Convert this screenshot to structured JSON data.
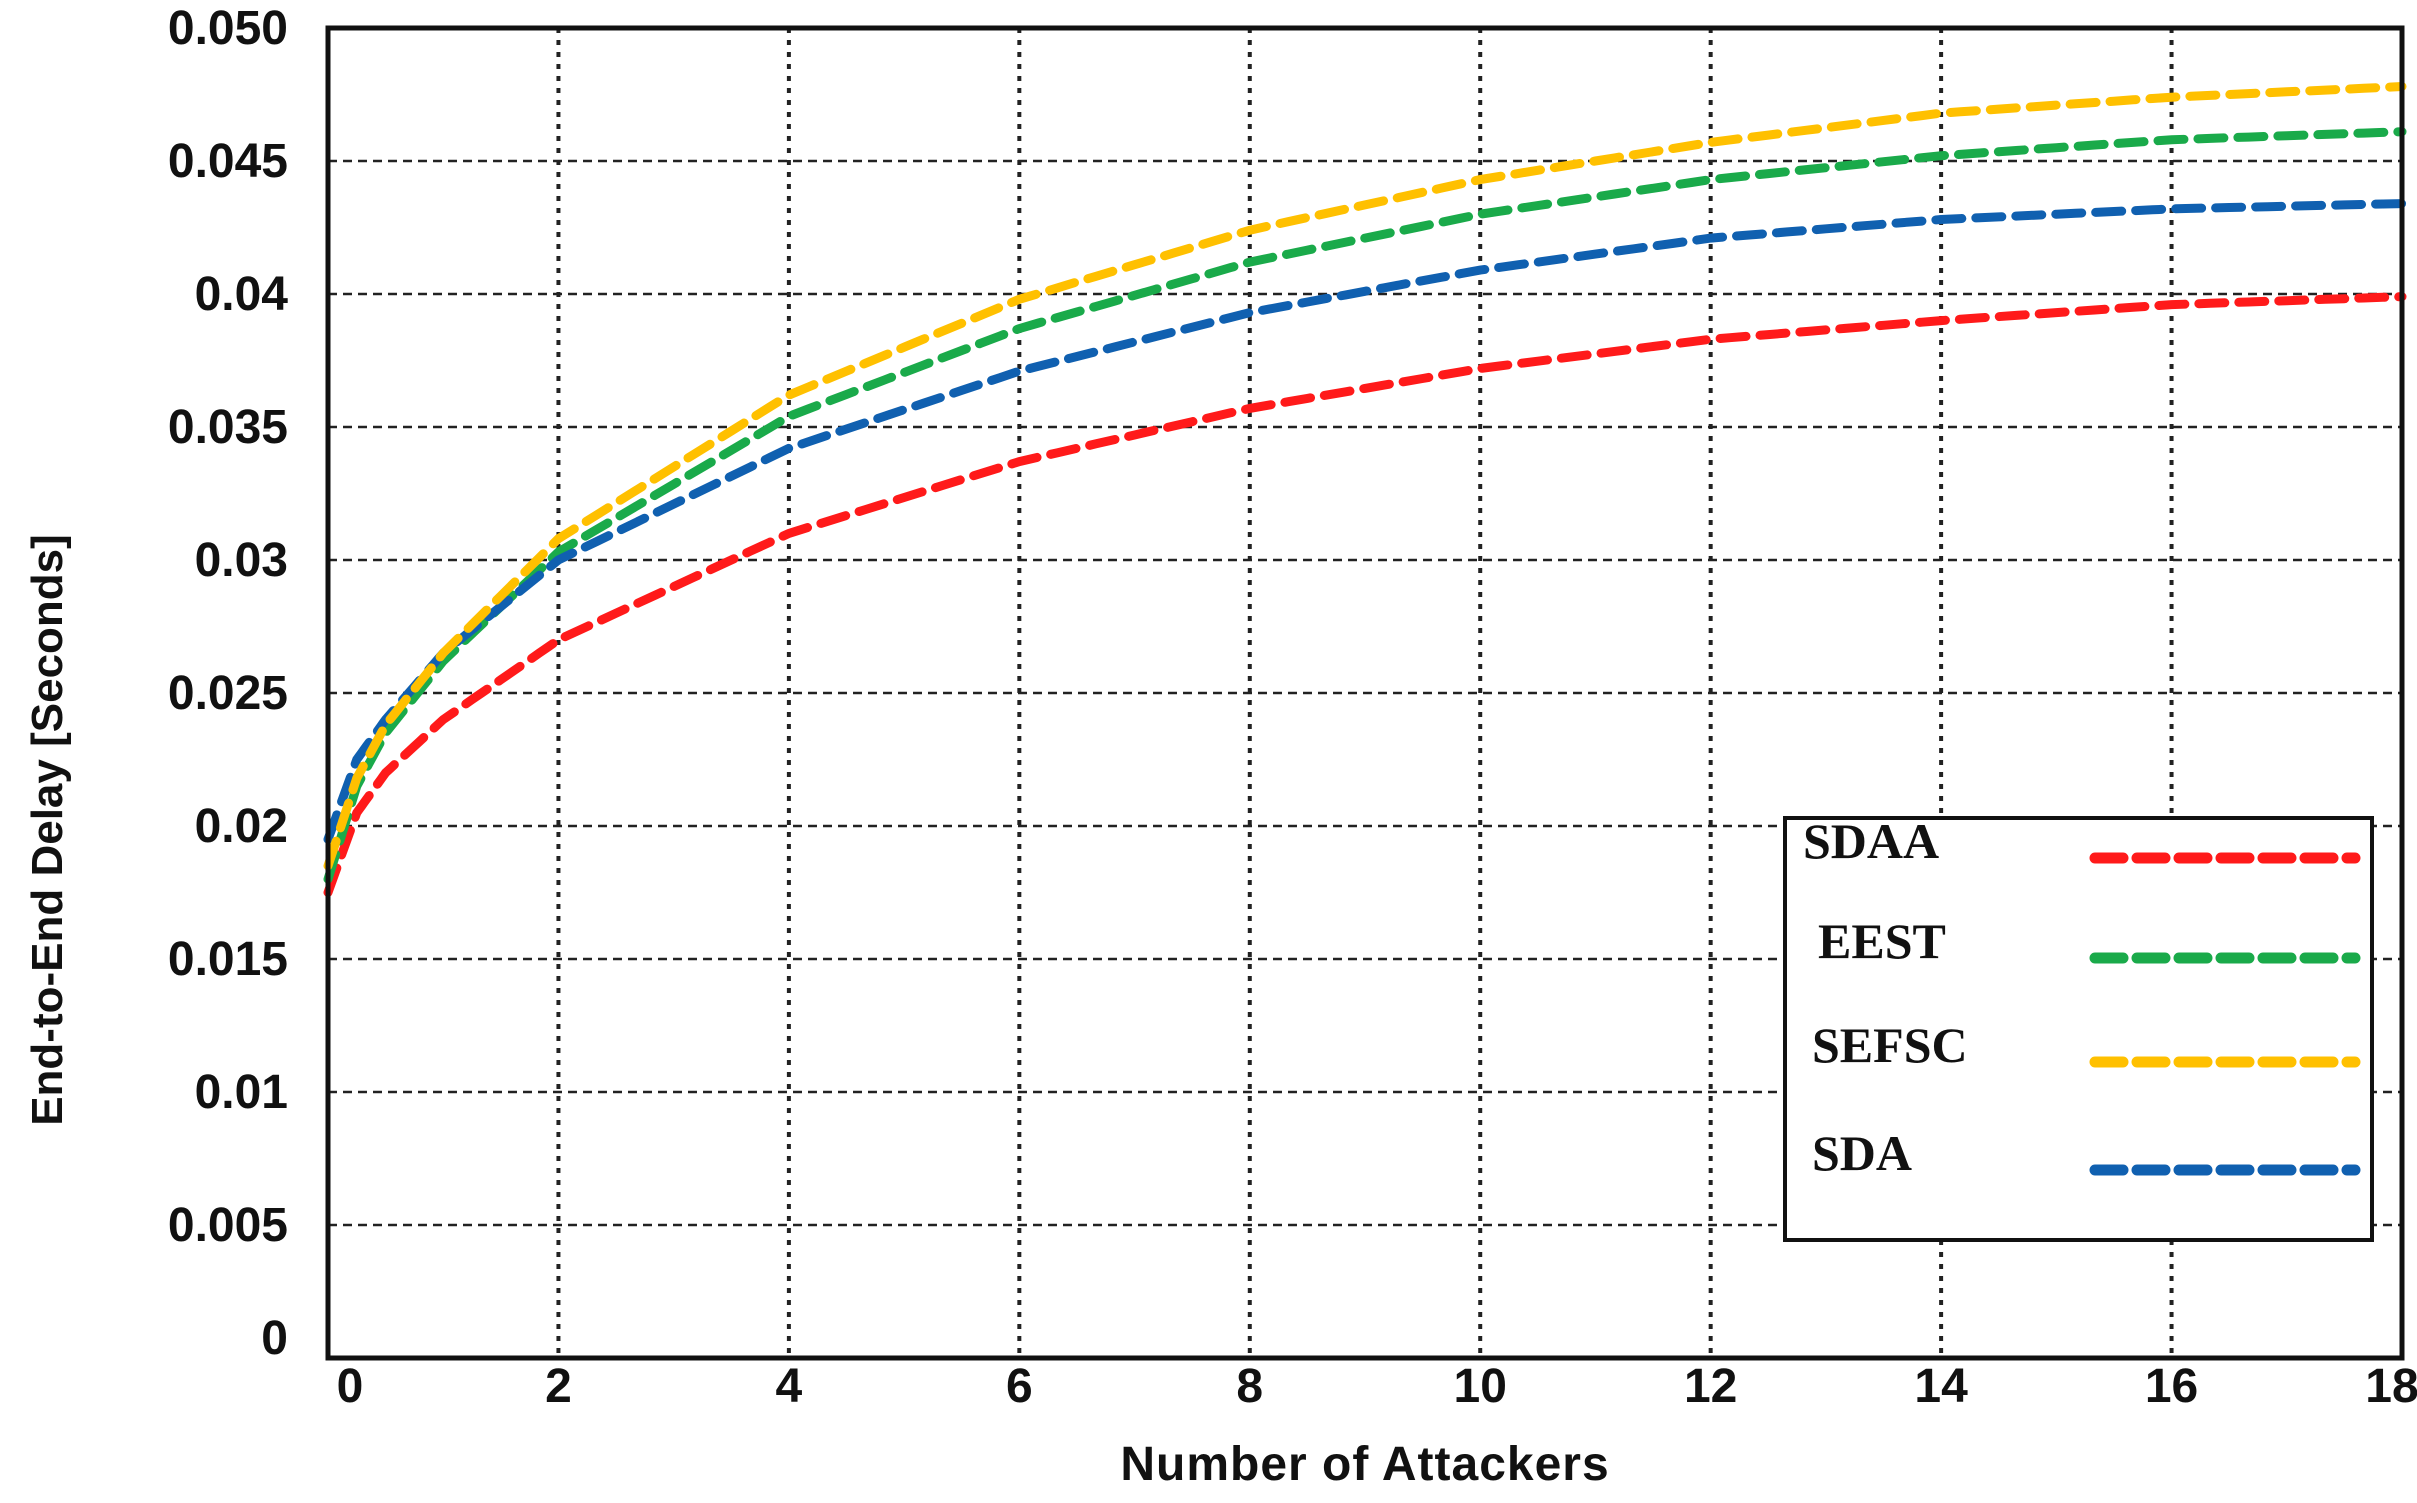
{
  "chart_data": {
    "type": "line",
    "title": "",
    "xlabel": "Number of Attackers",
    "ylabel": "End-to-End Delay [Seconds]",
    "xlim": [
      0,
      18
    ],
    "ylim": [
      0,
      0.05
    ],
    "x_ticks": [
      "0",
      "2",
      "4",
      "6",
      "8",
      "10",
      "12",
      "14",
      "16",
      "18"
    ],
    "y_ticks": [
      "0",
      "0.005",
      "0.01",
      "0.015",
      "0.02",
      "0.025",
      "0.03",
      "0.035",
      "0.04",
      "0.045",
      "0.050"
    ],
    "grid": true,
    "legend_position": "bottom-right",
    "x": [
      0,
      0.25,
      0.5,
      1,
      2,
      4,
      6,
      8,
      10,
      12,
      14,
      16,
      18
    ],
    "series": [
      {
        "name": "SDAA",
        "color": "#ff1a1a",
        "values": [
          0.0175,
          0.0205,
          0.022,
          0.024,
          0.027,
          0.031,
          0.0337,
          0.0357,
          0.0372,
          0.0383,
          0.039,
          0.0396,
          0.0399
        ]
      },
      {
        "name": "EEST",
        "color": "#1aaa4a",
        "values": [
          0.018,
          0.0215,
          0.0235,
          0.0262,
          0.0303,
          0.0354,
          0.0387,
          0.0412,
          0.043,
          0.0443,
          0.0452,
          0.0458,
          0.0461
        ]
      },
      {
        "name": "SEFSC",
        "color": "#ffc000",
        "values": [
          0.0185,
          0.0218,
          0.0238,
          0.0265,
          0.0308,
          0.0362,
          0.0398,
          0.0424,
          0.0443,
          0.0457,
          0.0468,
          0.0474,
          0.0478
        ]
      },
      {
        "name": "SDA",
        "color": "#1060b0",
        "values": [
          0.0195,
          0.0225,
          0.024,
          0.0265,
          0.03,
          0.0342,
          0.0371,
          0.0393,
          0.0409,
          0.0421,
          0.0428,
          0.0432,
          0.0434
        ]
      }
    ]
  }
}
